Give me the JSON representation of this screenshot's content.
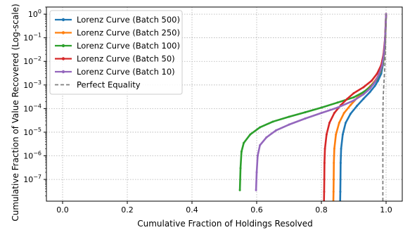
{
  "chart_data": {
    "type": "line",
    "title": "",
    "xlabel": "Cumulative Fraction of Holdings Resolved",
    "ylabel": "Cumulative Fraction of Value Recovered (Log-scale)",
    "xlim": [
      -0.05,
      1.05
    ],
    "ylim": [
      1.2e-08,
      2.0
    ],
    "yscale": "log",
    "grid": true,
    "legend_position": "top-left",
    "x_ticks": [
      0.0,
      0.2,
      0.4,
      0.6,
      0.8,
      1.0
    ],
    "x_tick_labels": [
      "0.0",
      "0.2",
      "0.4",
      "0.6",
      "0.8",
      "1.0"
    ],
    "y_ticks": [
      {
        "value": 1e-07,
        "base": "10",
        "exp": "−7"
      },
      {
        "value": 1e-06,
        "base": "10",
        "exp": "−6"
      },
      {
        "value": 1e-05,
        "base": "10",
        "exp": "−5"
      },
      {
        "value": 0.0001,
        "base": "10",
        "exp": "−4"
      },
      {
        "value": 0.001,
        "base": "10",
        "exp": "−3"
      },
      {
        "value": 0.01,
        "base": "10",
        "exp": "−2"
      },
      {
        "value": 0.1,
        "base": "10",
        "exp": "−1"
      },
      {
        "value": 1,
        "base": "10",
        "exp": "0"
      }
    ],
    "series": [
      {
        "name": "Lorenz Curve (Batch 500)",
        "color": "#1f77b4",
        "style": "solid-marker",
        "points": [
          [
            0.858,
            1.2e-08
          ],
          [
            0.8585,
            3e-08
          ],
          [
            0.859,
            1e-07
          ],
          [
            0.8595,
            5e-07
          ],
          [
            0.861,
            2e-06
          ],
          [
            0.866,
            8e-06
          ],
          [
            0.875,
            2.5e-05
          ],
          [
            0.89,
            6e-05
          ],
          [
            0.91,
            0.00013
          ],
          [
            0.93,
            0.00026
          ],
          [
            0.95,
            0.0005
          ],
          [
            0.965,
            0.0009
          ],
          [
            0.975,
            0.0015
          ],
          [
            0.985,
            0.003
          ],
          [
            0.99,
            0.007
          ],
          [
            0.994,
            0.02
          ],
          [
            0.997,
            0.1
          ],
          [
            1.0,
            1.0
          ]
        ]
      },
      {
        "name": "Lorenz Curve (Batch 250)",
        "color": "#ff7f0e",
        "style": "solid-marker",
        "points": [
          [
            0.837,
            1.2e-08
          ],
          [
            0.8375,
            3e-08
          ],
          [
            0.838,
            1e-07
          ],
          [
            0.8385,
            5e-07
          ],
          [
            0.84,
            2e-06
          ],
          [
            0.845,
            8e-06
          ],
          [
            0.855,
            2.5e-05
          ],
          [
            0.87,
            6.5e-05
          ],
          [
            0.89,
            0.00014
          ],
          [
            0.91,
            0.00028
          ],
          [
            0.935,
            0.00055
          ],
          [
            0.955,
            0.001
          ],
          [
            0.97,
            0.0018
          ],
          [
            0.982,
            0.0035
          ],
          [
            0.99,
            0.008
          ],
          [
            0.995,
            0.025
          ],
          [
            0.998,
            0.12
          ],
          [
            1.0,
            1.0
          ]
        ]
      },
      {
        "name": "Lorenz Curve (Batch 100)",
        "color": "#2ca02c",
        "style": "solid-marker",
        "points": [
          [
            0.548,
            3.5e-08
          ],
          [
            0.55,
            3e-07
          ],
          [
            0.553,
            1.5e-06
          ],
          [
            0.56,
            3.5e-06
          ],
          [
            0.58,
            8e-06
          ],
          [
            0.61,
            1.6e-05
          ],
          [
            0.65,
            2.8e-05
          ],
          [
            0.7,
            4.5e-05
          ],
          [
            0.75,
            7e-05
          ],
          [
            0.8,
            0.00011
          ],
          [
            0.85,
            0.00018
          ],
          [
            0.9,
            0.0003
          ],
          [
            0.93,
            0.0005
          ],
          [
            0.95,
            0.0008
          ],
          [
            0.97,
            0.0016
          ],
          [
            0.98,
            0.003
          ],
          [
            0.99,
            0.008
          ],
          [
            0.995,
            0.03
          ],
          [
            0.998,
            0.15
          ],
          [
            1.0,
            1.0
          ]
        ]
      },
      {
        "name": "Lorenz Curve (Batch 50)",
        "color": "#d62728",
        "style": "solid-marker",
        "points": [
          [
            0.808,
            1.2e-08
          ],
          [
            0.8085,
            3e-08
          ],
          [
            0.809,
            1e-07
          ],
          [
            0.8095,
            5e-07
          ],
          [
            0.811,
            2e-06
          ],
          [
            0.816,
            8e-06
          ],
          [
            0.825,
            2.5e-05
          ],
          [
            0.84,
            6.5e-05
          ],
          [
            0.86,
            0.00014
          ],
          [
            0.88,
            0.00026
          ],
          [
            0.9,
            0.00045
          ],
          [
            0.93,
            0.0008
          ],
          [
            0.955,
            0.0015
          ],
          [
            0.972,
            0.003
          ],
          [
            0.985,
            0.007
          ],
          [
            0.992,
            0.02
          ],
          [
            0.997,
            0.1
          ],
          [
            1.0,
            1.0
          ]
        ]
      },
      {
        "name": "Lorenz Curve (Batch 10)",
        "color": "#9467bd",
        "style": "solid-marker",
        "points": [
          [
            0.598,
            3.5e-08
          ],
          [
            0.6,
            2e-07
          ],
          [
            0.603,
            1e-06
          ],
          [
            0.61,
            2.8e-06
          ],
          [
            0.63,
            6e-06
          ],
          [
            0.66,
            1.2e-05
          ],
          [
            0.7,
            2.1e-05
          ],
          [
            0.75,
            3.8e-05
          ],
          [
            0.8,
            6.5e-05
          ],
          [
            0.85,
            0.00011
          ],
          [
            0.9,
            0.00022
          ],
          [
            0.93,
            0.0004
          ],
          [
            0.95,
            0.0007
          ],
          [
            0.965,
            0.0013
          ],
          [
            0.978,
            0.0028
          ],
          [
            0.988,
            0.007
          ],
          [
            0.994,
            0.025
          ],
          [
            0.998,
            0.15
          ],
          [
            1.0,
            1.0
          ]
        ]
      },
      {
        "name": "Perfect Equality",
        "color": "#808080",
        "style": "dashed",
        "points": [
          [
            0.99,
            1.2e-08
          ],
          [
            0.99,
            5e-05
          ],
          [
            0.991,
            0.0003
          ],
          [
            0.993,
            0.001
          ],
          [
            0.996,
            0.006
          ],
          [
            0.998,
            0.03
          ],
          [
            1.0,
            1.0
          ]
        ]
      }
    ]
  }
}
